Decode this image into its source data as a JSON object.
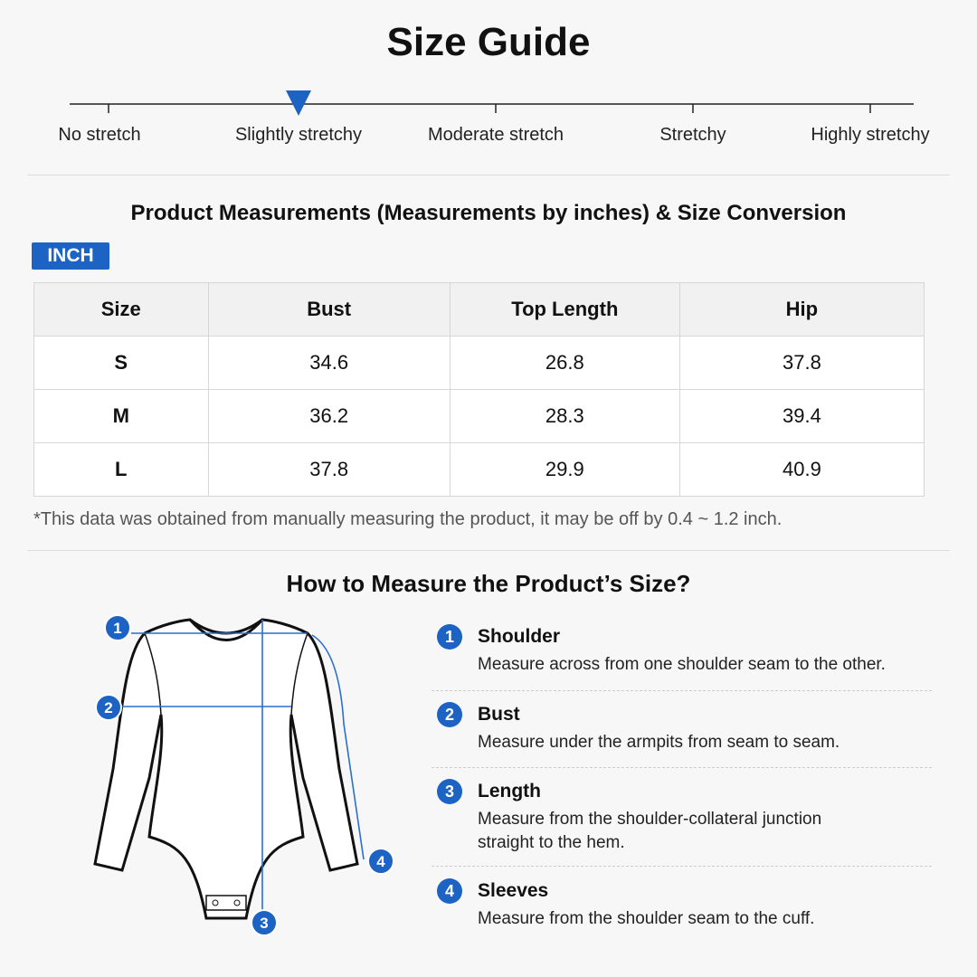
{
  "header": {
    "title": "Size Guide"
  },
  "stretch": {
    "labels": [
      "No stretch",
      "Slightly stretchy",
      "Moderate stretch",
      "Stretchy",
      "Highly stretchy"
    ],
    "selected": 1
  },
  "measurements": {
    "title": "Product Measurements (Measurements by inches) & Size Conversion",
    "unit": "INCH",
    "table": {
      "columns": [
        "Size",
        "Bust",
        "Top Length",
        "Hip"
      ],
      "rows": [
        [
          "S",
          34.6,
          26.8,
          37.8
        ],
        [
          "M",
          36.2,
          28.3,
          39.4
        ],
        [
          "L",
          37.8,
          29.9,
          40.9
        ]
      ]
    },
    "note": "*This data was obtained from manually measuring the product, it may be off by 0.4 ~ 1.2 inch."
  },
  "how_to": {
    "title": "How to Measure the Product’s Size?",
    "steps": [
      {
        "number": "1",
        "label": "Shoulder",
        "description": [
          "Measure across from one shoulder seam to the other."
        ]
      },
      {
        "number": "2",
        "label": "Bust",
        "description": [
          "Measure under the armpits from seam to seam."
        ]
      },
      {
        "number": "3",
        "label": "Length",
        "description": [
          "Measure from the shoulder-collateral junction",
          "straight to the hem."
        ]
      },
      {
        "number": "4",
        "label": "Sleeves",
        "description": [
          "Measure from the shoulder seam to the cuff."
        ]
      }
    ]
  }
}
